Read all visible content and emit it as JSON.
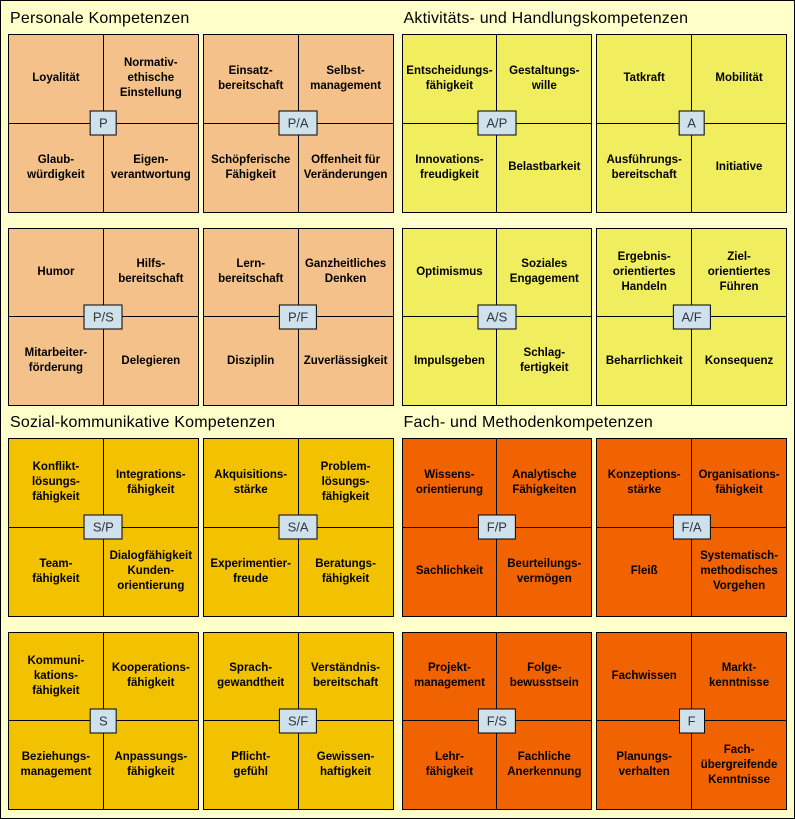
{
  "page": {
    "background": "#FFFFC9",
    "border_color": "#000000",
    "center_label_bg": "#CFE1EB",
    "center_label_color": "#333344"
  },
  "quadrants": [
    {
      "title": "Personale Kompetenzen",
      "cell_color": "#F3C189",
      "subquadrants": [
        {
          "code": "P",
          "cells": [
            "Loyalität",
            "Normativ-\nethische\nEinstellung",
            "Glaub-\nwürdigkeit",
            "Eigen-\nverantwortung"
          ]
        },
        {
          "code": "P/A",
          "cells": [
            "Einsatz-\nbereitschaft",
            "Selbst-\nmanagement",
            "Schöpferische\nFähigkeit",
            "Offenheit für\nVeränderungen"
          ]
        },
        {
          "code": "P/S",
          "cells": [
            "Humor",
            "Hilfs-\nbereitschaft",
            "Mitarbeiter-\nförderung",
            "Delegieren"
          ]
        },
        {
          "code": "P/F",
          "cells": [
            "Lern-\nbereitschaft",
            "Ganzheitliches\nDenken",
            "Disziplin",
            "Zuverlässigkeit"
          ]
        }
      ]
    },
    {
      "title": "Aktivitäts- und Handlungskompetenzen",
      "cell_color": "#F0EE5E",
      "subquadrants": [
        {
          "code": "A/P",
          "cells": [
            "Entscheidungs-\nfähigkeit",
            "Gestaltungs-\nwille",
            "Innovations-\nfreudigkeit",
            "Belastbarkeit"
          ]
        },
        {
          "code": "A",
          "cells": [
            "Tatkraft",
            "Mobilität",
            "Ausführungs-\nbereitschaft",
            "Initiative"
          ]
        },
        {
          "code": "A/S",
          "cells": [
            "Optimismus",
            "Soziales\nEngagement",
            "Impulsgeben",
            "Schlag-\nfertigkeit"
          ]
        },
        {
          "code": "A/F",
          "cells": [
            "Ergebnis-\norientiertes\nHandeln",
            "Ziel-\norientiertes\nFühren",
            "Beharrlichkeit",
            "Konsequenz"
          ]
        }
      ]
    },
    {
      "title": "Sozial-kommunikative Kompetenzen",
      "cell_color": "#F2C100",
      "subquadrants": [
        {
          "code": "S/P",
          "cells": [
            "Konflikt-\nlösungs-\nfähigkeit",
            "Integrations-\nfähigkeit",
            "Team-\nfähigkeit",
            "Dialogfähigkeit\nKunden-\norientierung"
          ]
        },
        {
          "code": "S/A",
          "cells": [
            "Akquisitions-\nstärke",
            "Problem-\nlösungs-\nfähigkeit",
            "Experimentier-\nfreude",
            "Beratungs-\nfähigkeit"
          ]
        },
        {
          "code": "S",
          "cells": [
            "Kommuni-\nkations-\nfähigkeit",
            "Kooperations-\nfähigkeit",
            "Beziehungs-\nmanagement",
            "Anpassungs-\nfähigkeit"
          ]
        },
        {
          "code": "S/F",
          "cells": [
            "Sprach-\ngewandtheit",
            "Verständnis-\nbereitschaft",
            "Pflicht-\ngefühl",
            "Gewissen-\nhaftigkeit"
          ]
        }
      ]
    },
    {
      "title": "Fach- und Methodenkompetenzen",
      "cell_color": "#F16300",
      "subquadrants": [
        {
          "code": "F/P",
          "cells": [
            "Wissens-\norientierung",
            "Analytische\nFähigkeiten",
            "Sachlichkeit",
            "Beurteilungs-\nvermögen"
          ]
        },
        {
          "code": "F/A",
          "cells": [
            "Konzeptions-\nstärke",
            "Organisations-\nfähigkeit",
            "Fleiß",
            "Systematisch-\nmethodisches\nVorgehen"
          ]
        },
        {
          "code": "F/S",
          "cells": [
            "Projekt-\nmanagement",
            "Folge-\nbewusstsein",
            "Lehr-\nfähigkeit",
            "Fachliche\nAnerkennung"
          ]
        },
        {
          "code": "F",
          "cells": [
            "Fachwissen",
            "Markt-\nkenntnisse",
            "Planungs-\nverhalten",
            "Fach-\nübergreifende\nKenntnisse"
          ]
        }
      ]
    }
  ]
}
